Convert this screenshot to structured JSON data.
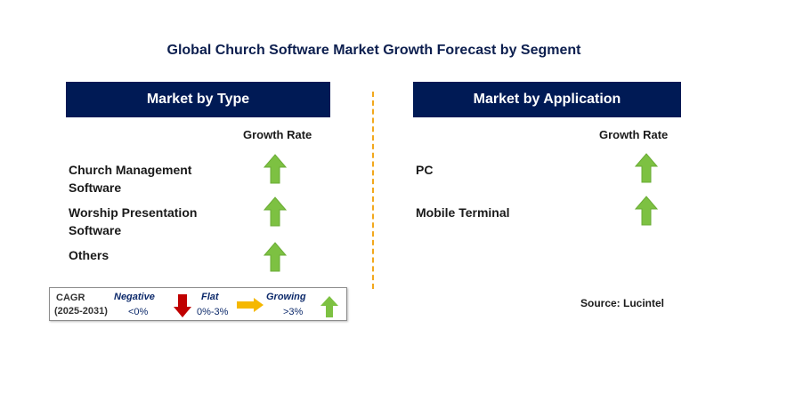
{
  "title": "Global Church Software Market Growth Forecast by Segment",
  "left_panel": {
    "header": "Market by Type",
    "growth_label": "Growth Rate",
    "rows": [
      {
        "line1": "Church Management",
        "line2": "Software",
        "trend": "growing"
      },
      {
        "line1": "Worship Presentation",
        "line2": "Software",
        "trend": "growing"
      },
      {
        "line1": "Others",
        "line2": "",
        "trend": "growing"
      }
    ]
  },
  "right_panel": {
    "header": "Market by Application",
    "growth_label": "Growth Rate",
    "rows": [
      {
        "line1": "PC",
        "trend": "growing"
      },
      {
        "line1": "Mobile Terminal",
        "trend": "growing"
      }
    ]
  },
  "legend": {
    "cagr": "CAGR",
    "years": "(2025-2031)",
    "negative": {
      "label": "Negative",
      "range": "<0%"
    },
    "flat": {
      "label": "Flat",
      "range": "0%-3%"
    },
    "growing": {
      "label": "Growing",
      "range": ">3%"
    }
  },
  "source": "Source: Lucintel",
  "colors": {
    "header_bg": "#001a55",
    "growing_arrow": "#7dc142",
    "negative_arrow": "#c00000",
    "flat_arrow": "#f5b800",
    "divider": "#f2a81d"
  }
}
